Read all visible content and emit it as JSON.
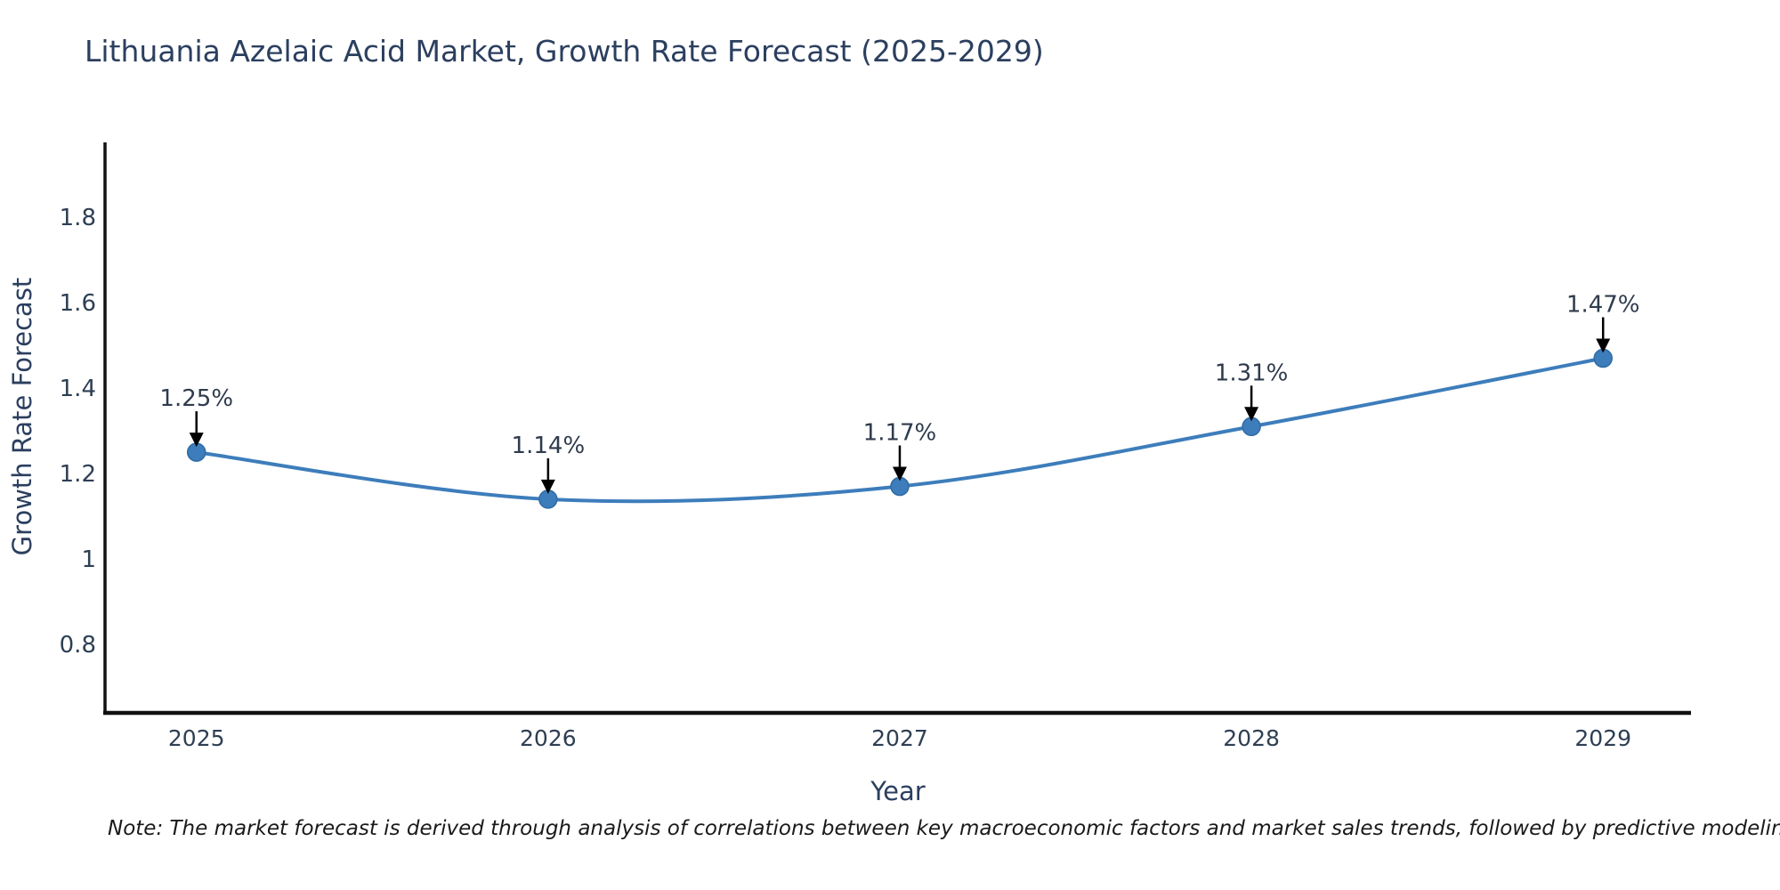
{
  "title": "Lithuania Azelaic Acid Market, Growth Rate Forecast (2025-2029)",
  "note": "Note: The market forecast is derived through analysis of correlations between key macroeconomic factors and market sales trends, followed by predictive modeling to project future sales",
  "chart_data": {
    "type": "line",
    "title": "Lithuania Azelaic Acid Market, Growth Rate Forecast (2025-2029)",
    "xlabel": "Year",
    "ylabel": "Growth Rate Forecast",
    "x": [
      2025,
      2026,
      2027,
      2028,
      2029
    ],
    "y": [
      1.25,
      1.14,
      1.17,
      1.31,
      1.47
    ],
    "point_labels": [
      "1.25%",
      "1.14%",
      "1.17%",
      "1.31%",
      "1.47%"
    ],
    "series_name": "Growth Rate Forecast",
    "xtick_labels": [
      "2025",
      "2026",
      "2027",
      "2028",
      "2029"
    ],
    "ytick_values": [
      0.8,
      1.0,
      1.2,
      1.4,
      1.6,
      1.8
    ],
    "ytick_labels": [
      "0.8",
      "1",
      "1.2",
      "1.4",
      "1.6",
      "1.8"
    ],
    "xlim": [
      2024.74,
      2029.25
    ],
    "ylim": [
      0.64,
      1.975
    ],
    "grid": false,
    "legend": "none",
    "curve": "spline",
    "colors": {
      "line": "#3d7dbb",
      "marker_fill": "#3d7dbb",
      "marker_edge": "#2f6ba3",
      "axis": "#111111",
      "tick_text": "#2e3f54",
      "annotation_text": "#2f3b4c",
      "annotation_arrow": "#000000",
      "title_text": "#2b3f5f"
    }
  }
}
